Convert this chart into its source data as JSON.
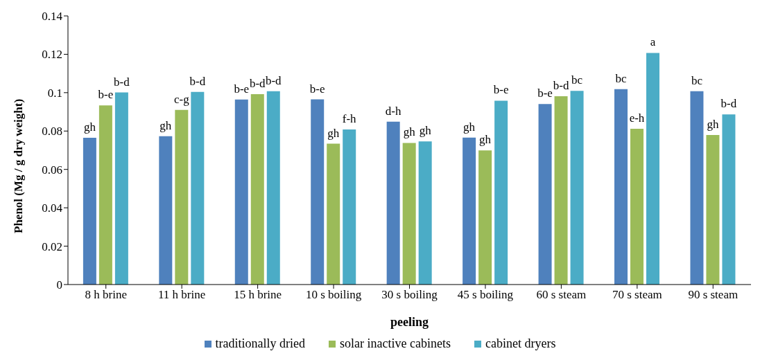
{
  "chart_data": {
    "type": "bar",
    "xlabel": "peeling",
    "ylabel": "Phenol (Mg / g dry weight)",
    "categories": [
      "8 h brine",
      "11 h brine",
      "15 h brine",
      "10 s boiling",
      "30 s boiling",
      "45 s boiling",
      "60 s  steam",
      "70 s steam",
      "90 s steam"
    ],
    "series": [
      {
        "name": "traditionally dried",
        "color": "#4f81bd",
        "values": [
          0.0765,
          0.0773,
          0.0964,
          0.0965,
          0.0849,
          0.0766,
          0.0941,
          0.1018,
          0.1008
        ],
        "value_labels": [
          "gh",
          "gh",
          "b-e",
          "b-e",
          "d-h",
          "gh",
          "b-e",
          "bc",
          "bc"
        ]
      },
      {
        "name": "solar inactive cabinets",
        "color": "#9bbb59",
        "values": [
          0.0934,
          0.091,
          0.0992,
          0.0734,
          0.0738,
          0.0699,
          0.0981,
          0.0812,
          0.0779
        ],
        "value_labels": [
          "b-e",
          "c-g",
          "b-d",
          "gh",
          "gh",
          "gh",
          "b-d",
          "e-h",
          "gh"
        ]
      },
      {
        "name": "cabinet dryers",
        "color": "#4bacc6",
        "values": [
          0.1001,
          0.1004,
          0.1008,
          0.0808,
          0.0746,
          0.0958,
          0.1009,
          0.1207,
          0.0887
        ],
        "value_labels": [
          "b-d",
          "b-d",
          "b-d",
          "f-h",
          "gh",
          "b-e",
          "bc",
          "a",
          "b-d"
        ]
      }
    ],
    "ylim": [
      0,
      0.14
    ],
    "yticks": [
      0,
      0.02,
      0.04,
      0.06,
      0.08,
      0.1,
      0.12,
      0.14
    ],
    "grid": false,
    "legend": "bottom"
  }
}
